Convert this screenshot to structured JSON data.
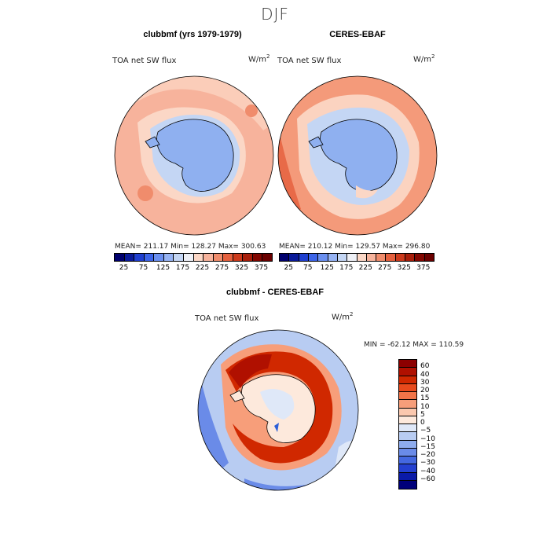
{
  "page": {
    "season": "DJF",
    "left_title": "clubbmf (yrs 1979-1979)",
    "right_title": "CERES-EBAF",
    "diff_title": "clubbmf - CERES-EBAF"
  },
  "colors": {
    "ocean_warm": "#f4a48a",
    "ocean_light": "#fbd3c0",
    "ice": "#8fb0f0",
    "ice_light": "#c4d6f4",
    "diff_red": "#c43010",
    "diff_blue": "#2c5fd8"
  },
  "chart_data": [
    {
      "type": "heatmap",
      "projection": "south-polar-stereographic",
      "title": "clubbmf (yrs 1979-1979)",
      "variable": "TOA net SW flux",
      "units": "W/m",
      "units_exp": "2",
      "stats": {
        "mean": 211.17,
        "min": 128.27,
        "max": 300.63
      },
      "stats_text": "MEAN= 211.17   Min= 128.27   Max= 300.63",
      "colorbar": {
        "levels": [
          25,
          50,
          75,
          100,
          125,
          150,
          175,
          200,
          225,
          250,
          275,
          300,
          325,
          350,
          375
        ],
        "tick_labels": [
          "25",
          "75",
          "125",
          "175",
          "225",
          "275",
          "325",
          "375"
        ],
        "colors": [
          "#00006e",
          "#0a1a9a",
          "#1f3fd0",
          "#3c64e8",
          "#6a8ff0",
          "#96b3f4",
          "#c4d6f4",
          "#eef0f6",
          "#fbd7c6",
          "#f7b39c",
          "#f08c6c",
          "#e5603e",
          "#cc3a1c",
          "#a81e0a",
          "#820600",
          "#6a0000"
        ]
      }
    },
    {
      "type": "heatmap",
      "projection": "south-polar-stereographic",
      "title": "CERES-EBAF",
      "variable": "TOA net SW flux",
      "units": "W/m",
      "units_exp": "2",
      "stats": {
        "mean": 210.12,
        "min": 129.57,
        "max": 296.8
      },
      "stats_text": "MEAN= 210.12   Min= 129.57   Max= 296.80",
      "colorbar": {
        "levels": [
          25,
          50,
          75,
          100,
          125,
          150,
          175,
          200,
          225,
          250,
          275,
          300,
          325,
          350,
          375
        ],
        "tick_labels": [
          "25",
          "75",
          "125",
          "175",
          "225",
          "275",
          "325",
          "375"
        ],
        "colors": [
          "#00006e",
          "#0a1a9a",
          "#1f3fd0",
          "#3c64e8",
          "#6a8ff0",
          "#96b3f4",
          "#c4d6f4",
          "#eef0f6",
          "#fbd7c6",
          "#f7b39c",
          "#f08c6c",
          "#e5603e",
          "#cc3a1c",
          "#a81e0a",
          "#820600",
          "#6a0000"
        ]
      }
    },
    {
      "type": "heatmap",
      "projection": "south-polar-stereographic",
      "title": "clubbmf - CERES-EBAF",
      "variable": "TOA net SW flux",
      "units": "W/m",
      "units_exp": "2",
      "stats": {
        "min": -62.12,
        "max": 110.59
      },
      "stats_text": "MIN = -62.12  MAX = 110.59",
      "colorbar": {
        "orientation": "vertical",
        "levels_top_to_bottom": [
          60,
          40,
          30,
          20,
          15,
          10,
          5,
          0,
          -5,
          -10,
          -15,
          -20,
          -30,
          -40,
          -60
        ],
        "tick_labels": [
          "60",
          "40",
          "30",
          "20",
          "15",
          "10",
          "5",
          "0",
          "−5",
          "−10",
          "−15",
          "−20",
          "−30",
          "−40",
          "−60"
        ],
        "colors_top_to_bottom": [
          "#8c0000",
          "#b01000",
          "#d02800",
          "#e84a1c",
          "#f27448",
          "#f79e7a",
          "#fbc8ae",
          "#fde9dc",
          "#dfe8f8",
          "#b8ccf2",
          "#8eacee",
          "#6a8be8",
          "#4468e0",
          "#2440d0",
          "#0a1aa8",
          "#00007a"
        ]
      }
    }
  ]
}
